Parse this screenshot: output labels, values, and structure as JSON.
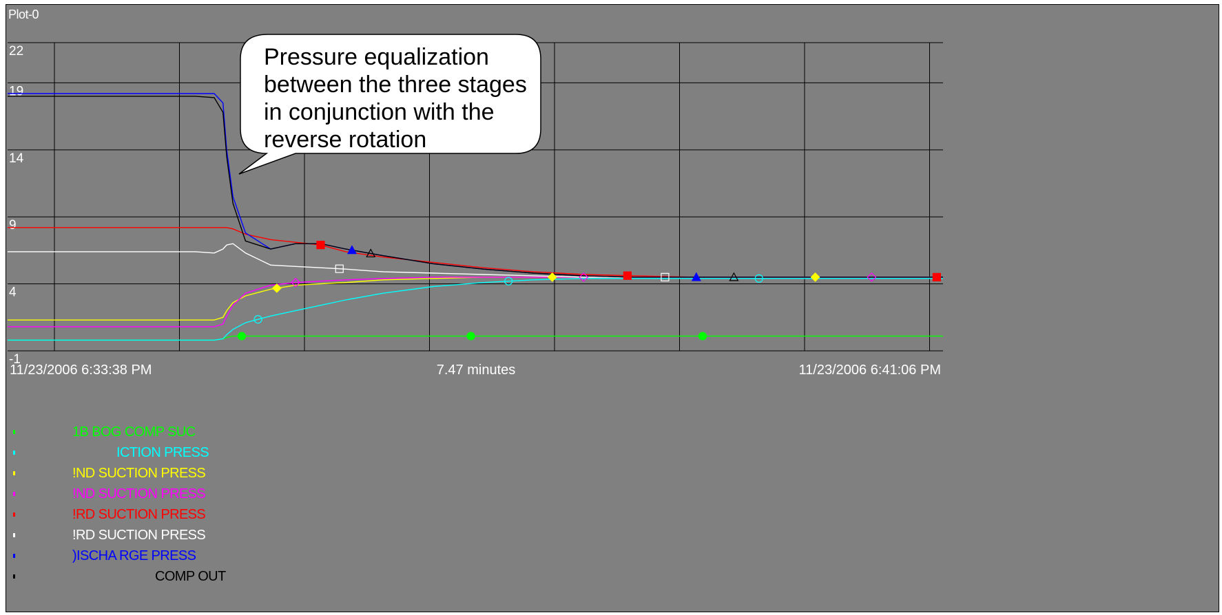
{
  "window": {
    "title": "Plot-0"
  },
  "colors": {
    "background": "#808080",
    "grid": "#000000",
    "callout_fill": "#ffffff"
  },
  "callout": {
    "lines": [
      "Pressure equalization",
      "between the three stages",
      "in conjunction with the",
      "reverse rotation"
    ]
  },
  "chart_data": {
    "type": "line",
    "title": "",
    "xlabel": "7.47 minutes",
    "x_start_label": "11/23/2006 6:33:38 PM",
    "x_end_label": "11/23/2006 6:41:06 PM",
    "x": [
      0,
      0.5,
      1.0,
      1.5,
      1.65,
      1.72,
      1.75,
      1.8,
      1.9,
      2.1,
      2.3,
      2.5,
      2.7,
      3.0,
      3.4,
      3.8,
      4.2,
      4.6,
      5.0,
      5.5,
      6.0,
      6.5,
      7.0,
      7.47
    ],
    "ylim": [
      -1,
      22
    ],
    "yticks": [
      -1,
      4,
      9,
      14,
      19,
      22
    ],
    "series": [
      {
        "name": "1B BOG COMP SUC",
        "color": "#00ff00",
        "marker": "circle-filled",
        "values": [
          -0.2,
          -0.2,
          -0.2,
          -0.2,
          -0.2,
          -0.1,
          0,
          0.1,
          0.1,
          0.1,
          0.1,
          0.1,
          0.1,
          0.1,
          0.1,
          0.1,
          0.1,
          0.1,
          0.1,
          0.1,
          0.1,
          0.1,
          0.1,
          0.1
        ]
      },
      {
        "name": "SUCTION PRESS",
        "color": "#00ffff",
        "marker": "circle-open",
        "values": [
          -0.2,
          -0.2,
          -0.2,
          -0.2,
          -0.2,
          -0.1,
          0.2,
          0.6,
          1.1,
          1.6,
          2.0,
          2.4,
          2.8,
          3.3,
          3.8,
          4.1,
          4.3,
          4.4,
          4.4,
          4.4,
          4.4,
          4.4,
          4.4,
          4.4
        ]
      },
      {
        "name": "2ND SUCTION PRESS",
        "color": "#ffff00",
        "marker": "diamond-filled",
        "values": [
          1.3,
          1.3,
          1.3,
          1.3,
          1.3,
          1.5,
          2.0,
          2.6,
          3.1,
          3.6,
          3.9,
          4.0,
          4.1,
          4.3,
          4.4,
          4.5,
          4.5,
          4.5,
          4.5,
          4.5,
          4.5,
          4.5,
          4.5,
          4.5
        ]
      },
      {
        "name": "2ND SUCTION PRESS",
        "color": "#ff00ff",
        "marker": "diamond-open",
        "values": [
          0.8,
          0.8,
          0.8,
          0.8,
          0.8,
          1.0,
          1.6,
          2.4,
          3.3,
          3.9,
          4.1,
          4.2,
          4.3,
          4.4,
          4.5,
          4.5,
          4.5,
          4.5,
          4.5,
          4.5,
          4.5,
          4.5,
          4.5,
          4.5
        ]
      },
      {
        "name": "3RD SUCTION PRESS",
        "color": "#ff0000",
        "marker": "square-filled",
        "values": [
          8.2,
          8.2,
          8.2,
          8.2,
          8.2,
          8.2,
          8.2,
          8.1,
          7.7,
          7.3,
          7.1,
          6.9,
          6.4,
          6.0,
          5.6,
          5.2,
          4.9,
          4.7,
          4.6,
          4.5,
          4.5,
          4.5,
          4.5,
          4.5
        ]
      },
      {
        "name": "3RD SUCTION PRESS",
        "color": "#ffffff",
        "marker": "square-open",
        "values": [
          6.4,
          6.4,
          6.4,
          6.4,
          6.3,
          6.6,
          6.9,
          7.0,
          6.3,
          5.4,
          5.3,
          5.2,
          5.1,
          4.9,
          4.8,
          4.7,
          4.6,
          4.5,
          4.5,
          4.5,
          4.5,
          4.5,
          4.5,
          4.5
        ]
      },
      {
        "name": "DISCHARGE PRESS",
        "color": "#0000ff",
        "marker": "triangle-filled",
        "values": [
          18.2,
          18.2,
          18.2,
          18.2,
          18.2,
          17.5,
          14.0,
          10.5,
          7.8,
          6.6,
          7.0,
          7.0,
          6.6,
          6.1,
          5.5,
          5.1,
          4.8,
          4.6,
          4.5,
          4.5,
          4.5,
          4.5,
          4.5,
          4.5
        ]
      },
      {
        "name": "COMP OUT",
        "color": "#000000",
        "marker": "triangle-open",
        "values": [
          18.0,
          18.0,
          18.0,
          18.0,
          17.9,
          16.8,
          13.5,
          10.0,
          7.2,
          6.6,
          7.0,
          7.0,
          6.6,
          6.1,
          5.5,
          5.1,
          4.8,
          4.6,
          4.5,
          4.5,
          4.5,
          4.5,
          4.5,
          4.5
        ]
      }
    ],
    "grid": true,
    "legend_position": "bottom-left"
  },
  "legend": {
    "items": [
      {
        "label": "1B BOG COMP SUC",
        "color": "#00ff00"
      },
      {
        "label": "ICTION PRESS",
        "color": "#00ffff"
      },
      {
        "label": "!ND SUCTION PRESS",
        "color": "#ffff00"
      },
      {
        "label": "!ND SUCTION PRESS",
        "color": "#ff00ff"
      },
      {
        "label": "!RD SUCTION PRESS",
        "color": "#ff0000"
      },
      {
        "label": "!RD SUCTION PRESS",
        "color": "#ffffff"
      },
      {
        "label": ")ISCHA RGE   PRESS",
        "color": "#0000ff"
      },
      {
        "label": "COMP OUT",
        "color": "#000000"
      }
    ]
  }
}
